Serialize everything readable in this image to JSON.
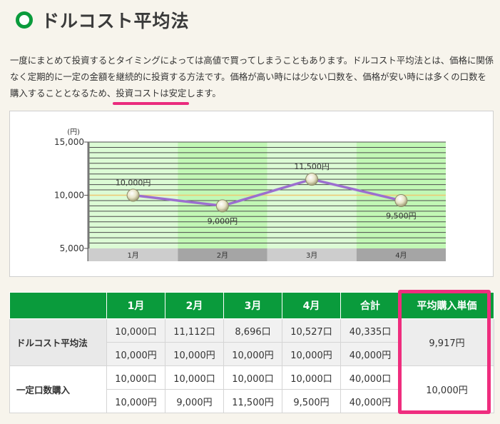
{
  "page": {
    "title": "ドルコスト平均法",
    "intro_before": "一度にまとめて投資するとタイミングによっては高値で買ってしまうこともあります。ドルコスト平均法とは、価格に関係なく定期的に一定の金額を継続的に投資する方法です。価格が高い時には少ない口数を、価格が安い時には多くの口数を購入することとなるため、",
    "intro_highlight": "投資コストは安定",
    "intro_after": "します。"
  },
  "chart_data": {
    "type": "line",
    "title": "",
    "unit_label": "(円)",
    "categories": [
      "1月",
      "2月",
      "3月",
      "4月"
    ],
    "values": [
      10000,
      9000,
      11500,
      9500
    ],
    "data_labels": [
      "10,000円",
      "9,000円",
      "11,500円",
      "9,500円"
    ],
    "y_ticks": [
      5000,
      10000,
      15000
    ],
    "y_tick_labels": [
      "5,000",
      "10,000",
      "15,000"
    ],
    "ylim": [
      5000,
      15000
    ],
    "grid": true,
    "reference_value": 10000,
    "colors": {
      "line": "#9b6fcf",
      "reference_line": "#f0c870",
      "band_light": "#dcfbd5",
      "band_dark": "#c2f8b5",
      "grid": "#4d4d4d",
      "axis_band_light": "#cdcdcd",
      "axis_band_dark": "#a5a5a5"
    }
  },
  "table": {
    "headers": [
      "",
      "1月",
      "2月",
      "3月",
      "4月",
      "合計",
      "平均購入単価"
    ],
    "groups": [
      {
        "label": "ドルコスト平均法",
        "rows": [
          [
            "10,000口",
            "11,112口",
            "8,696口",
            "10,527口",
            "40,335口"
          ],
          [
            "10,000円",
            "10,000円",
            "10,000円",
            "10,000円",
            "40,000円"
          ]
        ],
        "average": "9,917円"
      },
      {
        "label": "一定口数購入",
        "rows": [
          [
            "10,000口",
            "10,000口",
            "10,000口",
            "10,000口",
            "40,000口"
          ],
          [
            "10,000円",
            "9,000円",
            "11,500円",
            "9,500円",
            "40,000円"
          ]
        ],
        "average": "10,000円"
      }
    ]
  },
  "colors": {
    "brand_green": "#0a9b3c",
    "highlight_pink": "#ef2d7e"
  }
}
